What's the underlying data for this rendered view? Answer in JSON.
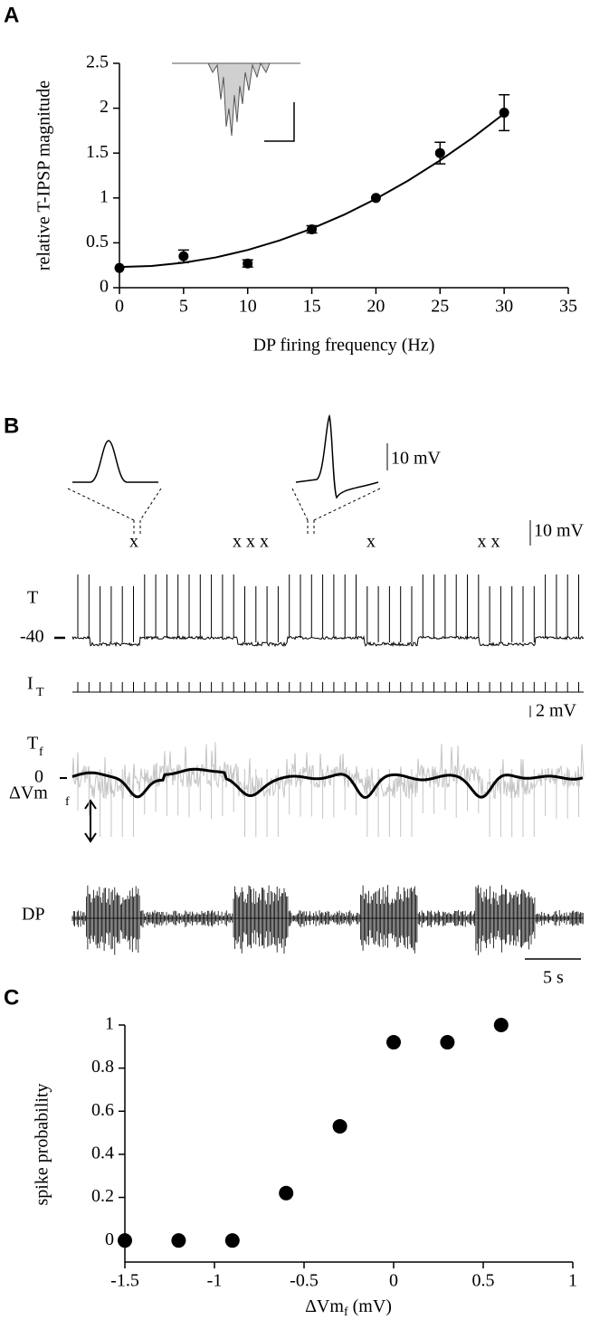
{
  "panel_labels": [
    "A",
    "B",
    "C"
  ],
  "chart_data": [
    {
      "type": "scatter",
      "xlabel": "DP firing frequency (Hz)",
      "ylabel": "relative T-IPSP magnitude",
      "x": [
        0,
        5,
        10,
        15,
        20,
        25,
        30
      ],
      "values": [
        0.22,
        0.35,
        0.27,
        0.65,
        1.0,
        1.5,
        1.95
      ],
      "errors": [
        null,
        0.07,
        0.04,
        0.04,
        null,
        0.12,
        0.2
      ],
      "color": "#000000",
      "fit": {
        "x": [
          0,
          2.5,
          5,
          7.5,
          10,
          12.5,
          15,
          17.5,
          20,
          22.5,
          25,
          27.5,
          30
        ],
        "values": [
          0.23,
          0.242,
          0.278,
          0.337,
          0.42,
          0.527,
          0.658,
          0.812,
          0.99,
          1.192,
          1.418,
          1.667,
          1.94
        ]
      },
      "xlim": [
        0,
        35
      ],
      "ylim": [
        0,
        2.5
      ],
      "xticks": [
        0,
        5,
        10,
        15,
        20,
        25,
        30,
        35
      ],
      "yticks": [
        0,
        0.5,
        1,
        1.5,
        2,
        2.5
      ]
    },
    {
      "type": "scatter",
      "xlabel": "ΔVm",
      "xlabel_sub": "f",
      "xlabel_unit": " (mV)",
      "ylabel": "spike probability",
      "x": [
        -1.5,
        -1.2,
        -0.9,
        -0.6,
        -0.3,
        0,
        0.3,
        0.6
      ],
      "values": [
        0,
        0,
        0,
        0.22,
        0.53,
        0.92,
        0.92,
        1.0
      ],
      "color": "#000000",
      "xlim": [
        -1.5,
        1
      ],
      "ylim": [
        -0.1,
        1
      ],
      "xticks": [
        -1.5,
        -1,
        -0.5,
        0,
        0.5,
        1
      ],
      "yticks": [
        0,
        0.2,
        0.4,
        0.6,
        0.8,
        1
      ]
    }
  ],
  "panel_b": {
    "inset_scale": "10 mV",
    "marks": [
      "x",
      "x x x",
      "x",
      "x x"
    ],
    "scale_t": "10 mV",
    "trace_T": "T",
    "level_T": "-40",
    "trace_IT": "I",
    "trace_IT_sub": "T",
    "scale_tf": "2 mV",
    "trace_Tf": "T",
    "trace_Tf_sub": "f",
    "level_Tf": "0",
    "delta": "ΔVm",
    "delta_sub": "f",
    "trace_DP": "DP",
    "time_scale": "5 s"
  }
}
